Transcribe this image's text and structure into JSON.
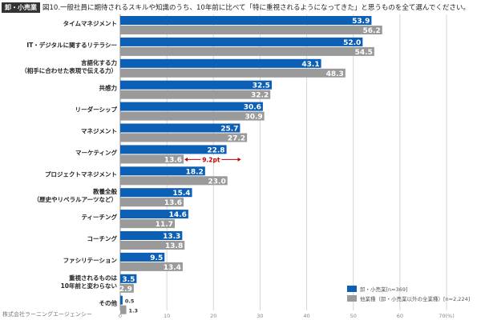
{
  "header": {
    "badge": "卸・小売業",
    "title": "図10.一般社員に期待されるスキルや知識のうち、10年前に比べて「特に重視されるようになってきた」と思うものを全て選んでください。"
  },
  "credit": "株式会社ラーニングエージェンシー",
  "chart_data": {
    "type": "bar",
    "orientation": "horizontal",
    "categories": [
      "タイムマネジメント",
      "IT・デジタルに関するリテラシー",
      "言語化する力\n（相手に合わせた表現で伝える力）",
      "共感力",
      "リーダーシップ",
      "マネジメント",
      "マーケティング",
      "プロジェクトマネジメント",
      "教養全般\n（歴史やリベラルアーツなど）",
      "ティーチング",
      "コーチング",
      "ファシリテーション",
      "重視されるものは\n10年前と変わらない",
      "その他"
    ],
    "series": [
      {
        "name": "卸・小売業[n=369]",
        "color": "#0b5fb5",
        "values": [
          53.9,
          52.0,
          43.1,
          32.5,
          30.6,
          25.7,
          22.8,
          18.2,
          15.4,
          14.6,
          13.3,
          9.5,
          3.5,
          0.5
        ]
      },
      {
        "name": "他業種（卸・小売業以外の全業種）[n=2,224]",
        "color": "#9a9a9a",
        "values": [
          56.2,
          54.5,
          48.3,
          32.2,
          30.9,
          27.2,
          13.6,
          23.0,
          13.6,
          11.7,
          13.8,
          13.4,
          2.9,
          1.3
        ]
      }
    ],
    "xlim": [
      0,
      70
    ],
    "xticks": [
      "0",
      "10",
      "20",
      "30",
      "40",
      "50",
      "60",
      "70(%)"
    ],
    "grid": true,
    "legend": "bottom-right",
    "annotation": {
      "text": "9.2pt",
      "category": "マーケティング",
      "color": "#c00000"
    }
  }
}
